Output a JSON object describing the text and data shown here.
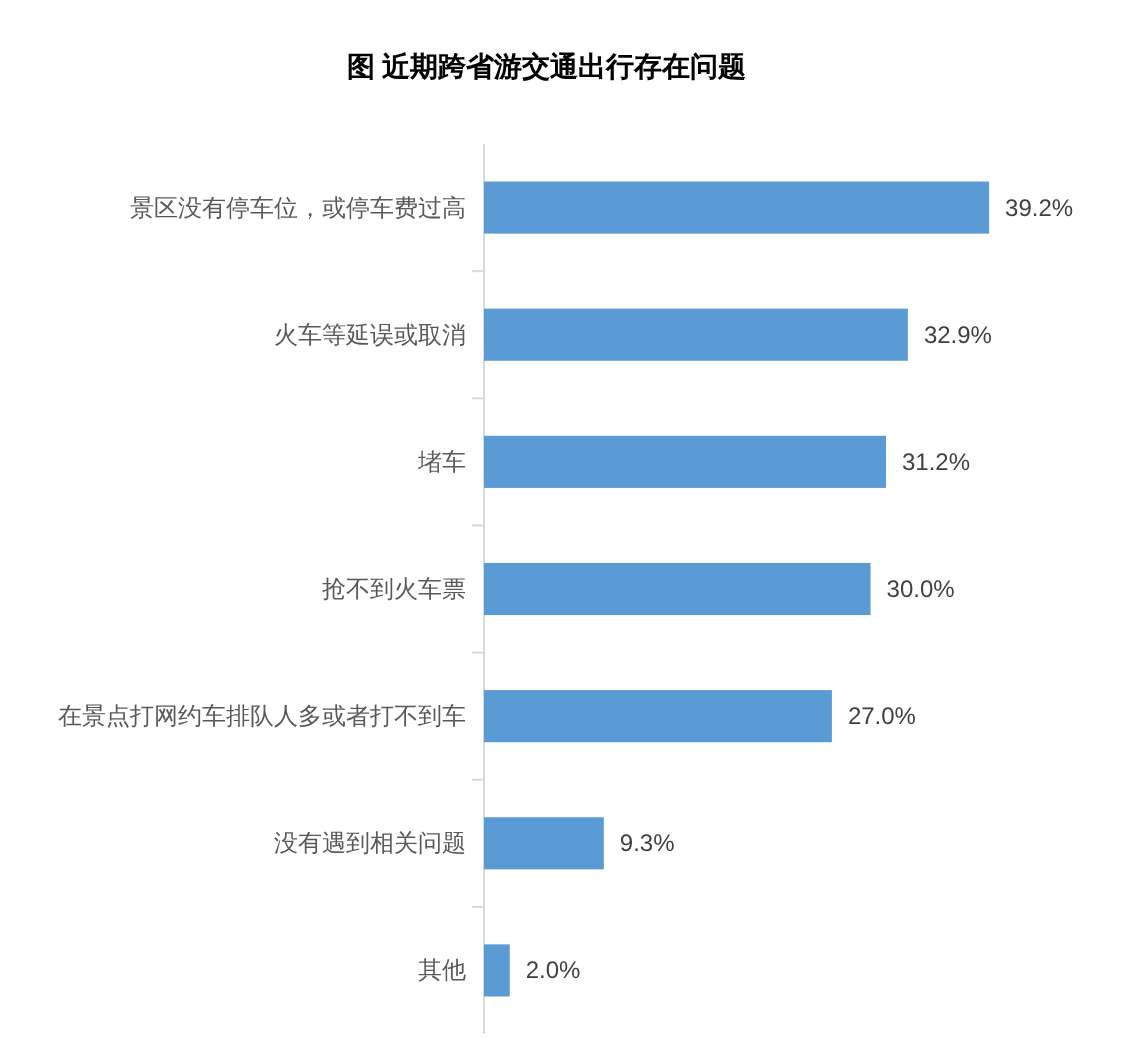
{
  "chart_data": {
    "type": "bar",
    "orientation": "horizontal",
    "title": "图 近期跨省游交通出行存在问题",
    "categories": [
      "景区没有停车位，或停车费过高",
      "火车等延误或取消",
      "堵车",
      "抢不到火车票",
      "在景点打网约车排队人多或者打不到车",
      "没有遇到相关问题",
      "其他"
    ],
    "values": [
      39.2,
      32.9,
      31.2,
      30.0,
      27.0,
      9.3,
      2.0
    ],
    "value_labels": [
      "39.2%",
      "32.9%",
      "31.2%",
      "30.0%",
      "27.0%",
      "9.3%",
      "2.0%"
    ],
    "color": "#5b9bd5"
  }
}
